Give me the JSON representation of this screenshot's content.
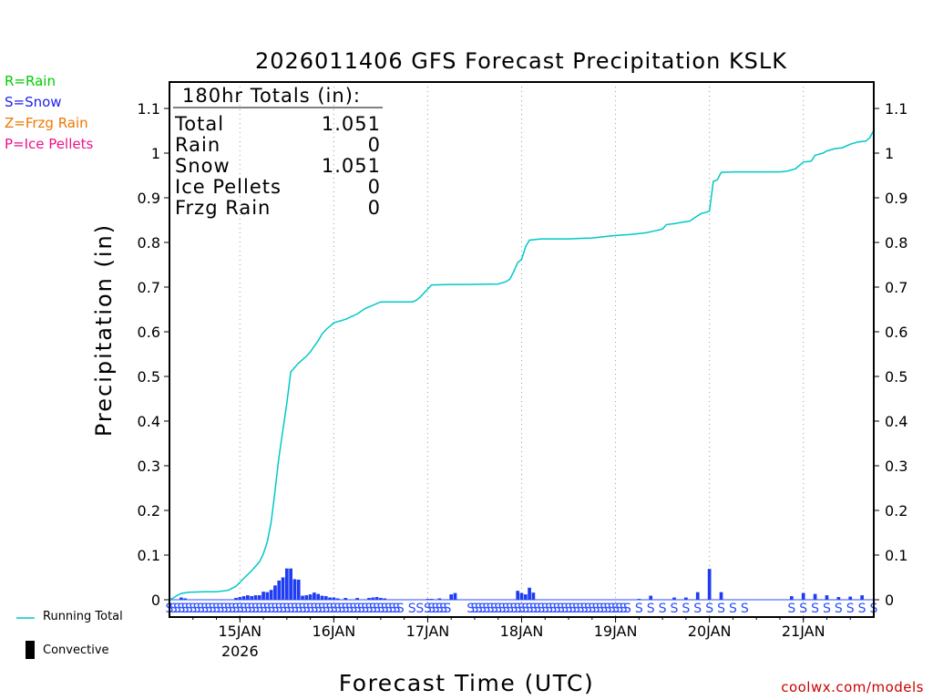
{
  "legend_types": [
    {
      "label": "R=Rain",
      "color": "#00cc00"
    },
    {
      "label": "S=Snow",
      "color": "#2222ee"
    },
    {
      "label": "Z=Frzg Rain",
      "color": "#ee7700"
    },
    {
      "label": "P=Ice Pellets",
      "color": "#ee1188"
    }
  ],
  "bottom_legend": {
    "running_total": "Running Total",
    "convective": "Convective"
  },
  "credit": "coolwx.com/models",
  "colors": {
    "running_total": "#00c8c8",
    "snow_bar": "#1f3cf0",
    "snow_marker": "#2a4dff"
  },
  "totals_box": {
    "header": "180hr Totals (in):",
    "rows": [
      {
        "label": "Total",
        "value": "1.051"
      },
      {
        "label": "Rain",
        "value": "0"
      },
      {
        "label": "Snow",
        "value": "1.051"
      },
      {
        "label": "Ice Pellets",
        "value": "0"
      },
      {
        "label": "Frzg Rain",
        "value": "0"
      }
    ]
  },
  "chart_data": {
    "type": "bar+line",
    "title": "2026011406 GFS Forecast Precipitation KSLK",
    "xlabel": "Forecast Time (UTC)",
    "ylabel": "Precipitation (in)",
    "ylim": [
      0,
      1.15
    ],
    "y_ticks": [
      "0",
      "0.1",
      "0.2",
      "0.3",
      "0.4",
      "0.5",
      "0.6",
      "0.7",
      "0.8",
      "0.9",
      "1",
      "1.1"
    ],
    "x_range_hours": [
      0,
      180
    ],
    "x_ticks": [
      {
        "hour": 18,
        "label": "15JAN",
        "sublabel": "2026"
      },
      {
        "hour": 42,
        "label": "16JAN"
      },
      {
        "hour": 66,
        "label": "17JAN"
      },
      {
        "hour": 90,
        "label": "18JAN"
      },
      {
        "hour": 114,
        "label": "19JAN"
      },
      {
        "hour": 138,
        "label": "20JAN"
      },
      {
        "hour": 162,
        "label": "21JAN"
      }
    ],
    "running_total": {
      "name": "Running Total",
      "hours": [
        0,
        1,
        2,
        3,
        5,
        9,
        12,
        15,
        17,
        19,
        21,
        23,
        24,
        25,
        26,
        27,
        28,
        30,
        31,
        33,
        35,
        36,
        38,
        39,
        40,
        42,
        45,
        48,
        50,
        54,
        58,
        62,
        63,
        64,
        67,
        72,
        76,
        84,
        86,
        87,
        88,
        89,
        90,
        91,
        92,
        95,
        102,
        108,
        113,
        116,
        118,
        120,
        122,
        124,
        126,
        127,
        129,
        131,
        133,
        135,
        136,
        137,
        138,
        139,
        140,
        141,
        144,
        150,
        156,
        158,
        160,
        162,
        164,
        165,
        167,
        168,
        170,
        172,
        174,
        176,
        178,
        179,
        180
      ],
      "values": [
        0,
        0.004,
        0.01,
        0.014,
        0.017,
        0.018,
        0.018,
        0.021,
        0.03,
        0.048,
        0.065,
        0.085,
        0.103,
        0.13,
        0.175,
        0.245,
        0.32,
        0.44,
        0.51,
        0.53,
        0.545,
        0.555,
        0.58,
        0.595,
        0.605,
        0.62,
        0.628,
        0.64,
        0.652,
        0.667,
        0.667,
        0.667,
        0.67,
        0.677,
        0.705,
        0.706,
        0.706,
        0.707,
        0.712,
        0.718,
        0.735,
        0.755,
        0.762,
        0.79,
        0.805,
        0.808,
        0.808,
        0.81,
        0.815,
        0.817,
        0.818,
        0.82,
        0.822,
        0.826,
        0.83,
        0.84,
        0.842,
        0.845,
        0.848,
        0.86,
        0.865,
        0.867,
        0.87,
        0.937,
        0.94,
        0.957,
        0.958,
        0.958,
        0.958,
        0.96,
        0.965,
        0.98,
        0.982,
        0.995,
        1.0,
        1.005,
        1.01,
        1.012,
        1.02,
        1.025,
        1.027,
        1.035,
        1.051
      ]
    },
    "bars": {
      "name": "Snow",
      "hours": [
        3,
        4,
        17,
        18,
        19,
        20,
        21,
        22,
        23,
        24,
        25,
        26,
        27,
        28,
        29,
        30,
        31,
        32,
        33,
        34,
        35,
        36,
        37,
        38,
        39,
        40,
        41,
        42,
        43,
        45,
        48,
        51,
        52,
        53,
        54,
        55,
        66,
        67,
        69,
        72,
        73,
        89,
        90,
        91,
        92,
        93,
        120,
        123,
        129,
        132,
        135,
        138,
        141,
        159,
        162,
        165,
        168,
        171,
        174,
        177
      ],
      "values": [
        0.005,
        0.003,
        0.004,
        0.006,
        0.008,
        0.01,
        0.008,
        0.01,
        0.01,
        0.018,
        0.017,
        0.022,
        0.032,
        0.043,
        0.05,
        0.07,
        0.07,
        0.046,
        0.045,
        0.009,
        0.01,
        0.012,
        0.016,
        0.013,
        0.009,
        0.008,
        0.005,
        0.005,
        0.003,
        0.004,
        0.004,
        0.004,
        0.005,
        0.006,
        0.004,
        0.003,
        0.002,
        0.002,
        0.003,
        0.012,
        0.015,
        0.02,
        0.015,
        0.012,
        0.027,
        0.016,
        0.002,
        0.009,
        0.005,
        0.005,
        0.017,
        0.069,
        0.017,
        0.008,
        0.015,
        0.013,
        0.01,
        0.006,
        0.007,
        0.01
      ]
    },
    "type_markers": {
      "symbol": "S",
      "hours": [
        0,
        1,
        2,
        3,
        4,
        5,
        6,
        7,
        8,
        9,
        10,
        11,
        12,
        13,
        14,
        15,
        16,
        17,
        18,
        19,
        20,
        21,
        22,
        23,
        24,
        25,
        26,
        27,
        28,
        29,
        30,
        31,
        32,
        33,
        34,
        35,
        36,
        37,
        38,
        39,
        40,
        41,
        42,
        43,
        44,
        45,
        46,
        47,
        48,
        49,
        50,
        51,
        52,
        53,
        54,
        55,
        56,
        57,
        58,
        59,
        62,
        64,
        66,
        67,
        68,
        69,
        70,
        71,
        77,
        78,
        79,
        80,
        81,
        82,
        83,
        84,
        85,
        86,
        87,
        88,
        89,
        90,
        91,
        92,
        93,
        94,
        95,
        96,
        97,
        98,
        99,
        100,
        101,
        102,
        103,
        104,
        105,
        106,
        107,
        108,
        109,
        110,
        111,
        112,
        113,
        114,
        115,
        116,
        117,
        120,
        123,
        126,
        129,
        132,
        135,
        138,
        141,
        144,
        147,
        159,
        162,
        165,
        168,
        171,
        174,
        177,
        180
      ]
    }
  }
}
